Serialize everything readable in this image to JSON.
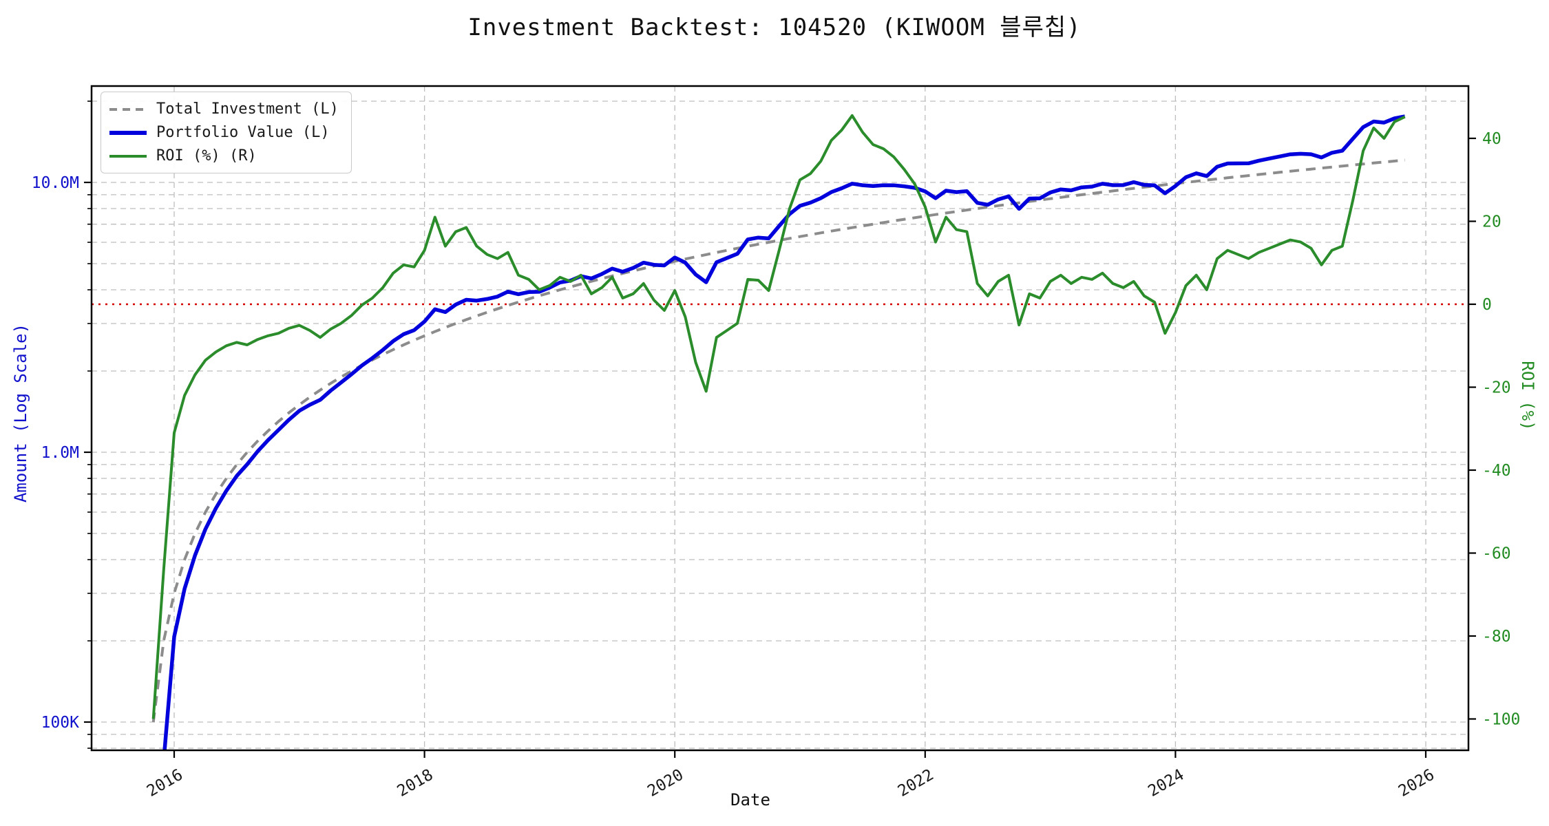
{
  "title": "Investment Backtest: 104520 (KIWOOM 블루칩)",
  "axes": {
    "x_label": "Date",
    "y_left_label": "Amount (Log Scale)",
    "y_right_label": "ROI (%)",
    "x_ticks": [
      2016,
      2018,
      2020,
      2022,
      2024,
      2026
    ],
    "y_left_ticks": [
      {
        "value": 10000000,
        "label": "10.0M"
      },
      {
        "value": 1000000,
        "label": "1.0M"
      },
      {
        "value": 100000,
        "label": "100K"
      }
    ],
    "y_right_ticks": [
      40,
      20,
      0,
      -20,
      -40,
      -60,
      -80,
      -100
    ]
  },
  "legend": {
    "items": [
      {
        "label": "Total Investment (L)",
        "color": "#8c8c8c",
        "style": "dashed"
      },
      {
        "label": "Portfolio Value (L)",
        "color": "#0000dd",
        "style": "solid"
      },
      {
        "label": "ROI (%) (R)",
        "color": "#2a8c2a",
        "style": "solid"
      }
    ]
  },
  "colors": {
    "investment_line": "#8c8c8c",
    "portfolio_line": "#0000dd",
    "roi_line": "#2a8c2a",
    "zero_line": "#d40000",
    "grid": "#bdbdbd",
    "spine": "#000000",
    "left_tick_text": "#1111cc",
    "right_tick_text": "#228B22"
  },
  "chart_data": {
    "type": "line",
    "title": "Investment Backtest: 104520 (KIWOOM 블루칩)",
    "xlabel": "Date",
    "ylabel_left": "Amount (Log Scale)",
    "ylabel_right": "ROI (%)",
    "x_start_month": "2015-11",
    "x_end_month": "2025-11",
    "frequency": "monthly",
    "n_months": 121,
    "monthly_contribution": 100000,
    "y_left_scale": "log",
    "y_left_range": [
      78600,
      22700000
    ],
    "y_right_range": [
      -107.5,
      52.6
    ],
    "zero_reference_line": {
      "axis": "right",
      "value": 0
    },
    "grid": true,
    "legend_position": "upper-left",
    "series": [
      {
        "name": "Total Investment (L)",
        "axis": "left",
        "unit": "M KRW",
        "note": "cumulative 100K per month: 0.1, 0.2, ... 12.1",
        "values_rule": {
          "start": 0.1,
          "step": 0.1,
          "count": 121
        }
      },
      {
        "name": "Portfolio Value (L)",
        "axis": "left",
        "unit": "M KRW",
        "values": [
          0,
          0.072,
          0.207,
          0.312,
          0.415,
          0.519,
          0.62,
          0.72,
          0.817,
          0.902,
          1.007,
          1.109,
          1.209,
          1.319,
          1.424,
          1.499,
          1.564,
          1.692,
          1.813,
          1.946,
          2.096,
          2.233,
          2.392,
          2.58,
          2.738,
          2.834,
          3.051,
          3.388,
          3.306,
          3.525,
          3.674,
          3.648,
          3.696,
          3.774,
          3.938,
          3.852,
          3.922,
          3.933,
          4.076,
          4.26,
          4.326,
          4.494,
          4.408,
          4.576,
          4.793,
          4.669,
          4.818,
          5.04,
          4.949,
          4.925,
          5.268,
          5.044,
          4.558,
          4.266,
          5.06,
          5.247,
          5.438,
          6.148,
          6.242,
          6.198,
          6.893,
          7.626,
          8.19,
          8.416,
          8.743,
          9.207,
          9.514,
          9.894,
          9.764,
          9.695,
          9.763,
          9.756,
          9.673,
          9.546,
          9.263,
          8.74,
          9.317,
          9.204,
          9.283,
          8.4,
          8.262,
          8.651,
          8.881,
          7.98,
          8.713,
          8.729,
          9.179,
          9.416,
          9.345,
          9.585,
          9.646,
          9.89,
          9.765,
          9.776,
          10.023,
          9.792,
          9.749,
          9.114,
          9.702,
          10.45,
          10.807,
          10.557,
          11.433,
          11.752,
          11.76,
          11.766,
          12.038,
          12.258,
          12.481,
          12.705,
          12.765,
          12.712,
          12.374,
          12.882,
          13.11,
          14.5,
          16.029,
          16.815,
          16.66,
          17.28,
          17.569
        ]
      },
      {
        "name": "ROI (%) (R)",
        "axis": "right",
        "unit": "%",
        "values": [
          -100,
          -64,
          -31,
          -22,
          -17,
          -13.5,
          -11.5,
          -10,
          -9.2,
          -9.8,
          -8.5,
          -7.6,
          -7,
          -5.8,
          -5.1,
          -6.3,
          -8,
          -6,
          -4.6,
          -2.7,
          -0.2,
          1.5,
          4,
          7.5,
          9.5,
          9,
          13,
          21,
          14,
          17.5,
          18.5,
          14,
          12,
          11,
          12.5,
          7,
          6,
          3.5,
          4.5,
          6.5,
          5.5,
          7,
          2.5,
          4,
          6.5,
          1.5,
          2.5,
          5,
          1,
          -1.5,
          3.3,
          -3,
          -14,
          -21,
          -8,
          -6.3,
          -4.6,
          6,
          5.8,
          3.3,
          13,
          23,
          30,
          31.5,
          34.5,
          39.5,
          42,
          45.5,
          41.5,
          38.5,
          37.5,
          35.5,
          32.5,
          29,
          23.5,
          15,
          21,
          18,
          17.5,
          5,
          2,
          5.5,
          7,
          -5,
          2.5,
          1.5,
          5.5,
          7,
          5,
          6.5,
          6,
          7.5,
          5,
          4,
          5.5,
          2,
          0.5,
          -7,
          -2,
          4.5,
          7,
          3.5,
          11,
          13,
          12,
          11,
          12.5,
          13.5,
          14.5,
          15.5,
          15,
          13.5,
          9.5,
          13,
          14,
          25,
          37,
          42.5,
          40,
          44,
          45.2
        ]
      }
    ]
  }
}
